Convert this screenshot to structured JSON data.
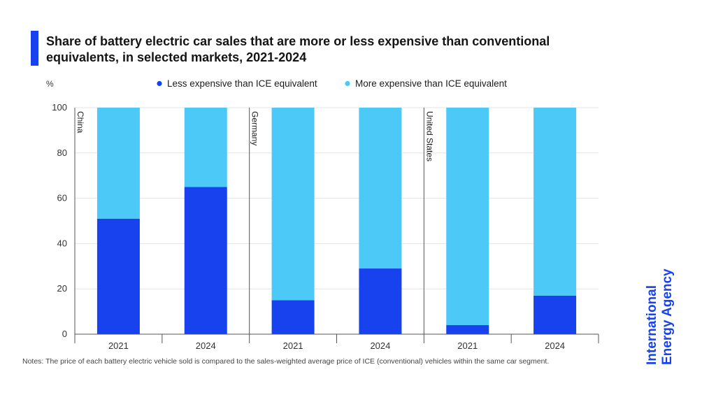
{
  "title": "Share of battery electric car sales that are more or less expensive than conventional equivalents, in selected markets, 2021-2024",
  "notes": "Notes: The price of each battery electric vehicle sold is compared to the sales-weighted average price of ICE (conventional) vehicles within the same car segment.",
  "logo_text": [
    "International",
    "Energy Agency"
  ],
  "colors": {
    "accent": "#1742ee",
    "less": "#1742ee",
    "more": "#4cc9f7",
    "grid": "#e4e4e4",
    "axis": "#555555"
  },
  "chart_data": {
    "type": "bar",
    "stacked": true,
    "unit": "%",
    "ylim": [
      0,
      100
    ],
    "yticks": [
      0,
      20,
      40,
      60,
      80,
      100
    ],
    "grid": true,
    "legend_position": "top",
    "panels": [
      {
        "name": "China",
        "categories": [
          "2021",
          "2024"
        ],
        "series": [
          {
            "name": "Less expensive than ICE equivalent",
            "values": [
              51,
              65
            ]
          },
          {
            "name": "More expensive than ICE equivalent",
            "values": [
              49,
              35
            ]
          }
        ]
      },
      {
        "name": "Germany",
        "categories": [
          "2021",
          "2024"
        ],
        "series": [
          {
            "name": "Less expensive than ICE equivalent",
            "values": [
              15,
              29
            ]
          },
          {
            "name": "More expensive than ICE equivalent",
            "values": [
              85,
              71
            ]
          }
        ]
      },
      {
        "name": "United States",
        "categories": [
          "2021",
          "2024"
        ],
        "series": [
          {
            "name": "Less expensive than ICE equivalent",
            "values": [
              4,
              17
            ]
          },
          {
            "name": "More expensive than ICE equivalent",
            "values": [
              96,
              83
            ]
          }
        ]
      }
    ],
    "legend": [
      "Less expensive than ICE equivalent",
      "More expensive than ICE equivalent"
    ]
  }
}
